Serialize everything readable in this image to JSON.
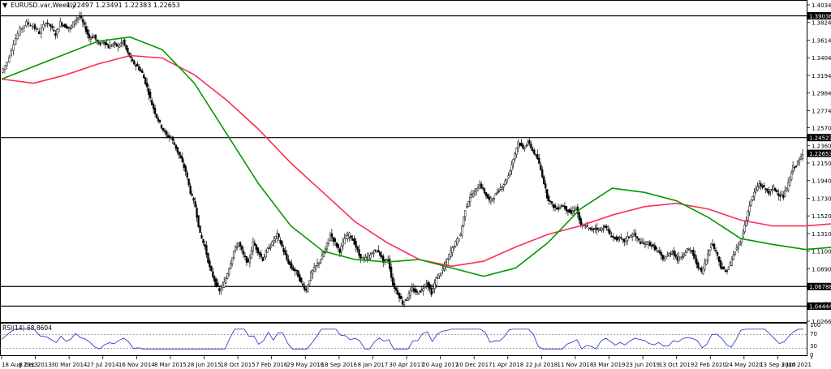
{
  "header": {
    "symbol_info": "EURUSD.var,Weekly",
    "ohlc": "1.22497 1.23491 1.22383 1.22653"
  },
  "price_axis": {
    "ticks": [
      "1.40340",
      "1.38240",
      "1.36140",
      "1.34040",
      "1.31940",
      "1.29840",
      "1.27740",
      "1.25700",
      "1.23600",
      "1.21500",
      "1.19400",
      "1.17300",
      "1.15200",
      "1.13100",
      "1.11000",
      "1.08900",
      "1.06860",
      "1.04760",
      "1.02660"
    ],
    "levels": [
      {
        "label": "1.39036",
        "value": 1.39036
      },
      {
        "label": "1.24527",
        "value": 1.24527
      },
      {
        "label": "1.06788",
        "value": 1.06788
      },
      {
        "label": "1.04444",
        "value": 1.04444
      }
    ],
    "current": {
      "label": "1.22653",
      "value": 1.22653
    }
  },
  "rsi": {
    "label": "RSI(14) 68.8604",
    "ticks": [
      "100",
      "70",
      "30",
      "0"
    ]
  },
  "time_axis": {
    "labels": [
      "18 Aug 2013",
      "8 Dec 2013",
      "30 Mar 2014",
      "27 Jul 2014",
      "16 Nov 2014",
      "8 Mar 2015",
      "28 Jun 2015",
      "18 Oct 2015",
      "7 Feb 2016",
      "29 May 2016",
      "18 Sep 2016",
      "8 Jan 2017",
      "30 Apr 2017",
      "20 Aug 2017",
      "10 Dec 2017",
      "1 Apr 2018",
      "22 Jul 2018",
      "11 Nov 2018",
      "3 Mar 2019",
      "23 Jun 2019",
      "13 Oct 2019",
      "2 Feb 2020",
      "24 May 2020",
      "13 Sep 2020",
      "3 Jan 2021"
    ]
  },
  "chart_data": {
    "type": "line",
    "ylim": [
      1.0266,
      1.4034
    ],
    "x_range": [
      "18 Aug 2013",
      "3 Jan 2021"
    ],
    "series": [
      {
        "role": "price",
        "color": "#000000",
        "points": [
          [
            0,
            1.323
          ],
          [
            4,
            1.335
          ],
          [
            8,
            1.358
          ],
          [
            12,
            1.374
          ],
          [
            16,
            1.382
          ],
          [
            20,
            1.378
          ],
          [
            24,
            1.37
          ],
          [
            28,
            1.383
          ],
          [
            31,
            1.378
          ],
          [
            34,
            1.368
          ],
          [
            37,
            1.382
          ],
          [
            40,
            1.378
          ],
          [
            43,
            1.375
          ],
          [
            46,
            1.385
          ],
          [
            49,
            1.39
          ],
          [
            52,
            1.378
          ],
          [
            55,
            1.364
          ],
          [
            58,
            1.366
          ],
          [
            61,
            1.356
          ],
          [
            64,
            1.36
          ],
          [
            67,
            1.353
          ],
          [
            70,
            1.357
          ],
          [
            73,
            1.354
          ],
          [
            76,
            1.36
          ],
          [
            79,
            1.346
          ],
          [
            82,
            1.335
          ],
          [
            85,
            1.33
          ],
          [
            88,
            1.322
          ],
          [
            91,
            1.305
          ],
          [
            94,
            1.285
          ],
          [
            97,
            1.27
          ],
          [
            100,
            1.258
          ],
          [
            103,
            1.248
          ],
          [
            106,
            1.245
          ],
          [
            109,
            1.233
          ],
          [
            112,
            1.22
          ],
          [
            115,
            1.205
          ],
          [
            118,
            1.18
          ],
          [
            121,
            1.163
          ],
          [
            124,
            1.13
          ],
          [
            127,
            1.115
          ],
          [
            130,
            1.09
          ],
          [
            133,
            1.075
          ],
          [
            136,
            1.062
          ],
          [
            139,
            1.072
          ],
          [
            142,
            1.09
          ],
          [
            145,
            1.11
          ],
          [
            148,
            1.12
          ],
          [
            151,
            1.105
          ],
          [
            154,
            1.095
          ],
          [
            157,
            1.12
          ],
          [
            160,
            1.11
          ],
          [
            163,
            1.1
          ],
          [
            166,
            1.112
          ],
          [
            169,
            1.12
          ],
          [
            172,
            1.13
          ],
          [
            175,
            1.115
          ],
          [
            178,
            1.1
          ],
          [
            181,
            1.09
          ],
          [
            184,
            1.085
          ],
          [
            187,
            1.072
          ],
          [
            190,
            1.063
          ],
          [
            193,
            1.083
          ],
          [
            196,
            1.092
          ],
          [
            199,
            1.1
          ],
          [
            202,
            1.112
          ],
          [
            205,
            1.13
          ],
          [
            208,
            1.12
          ],
          [
            211,
            1.11
          ],
          [
            214,
            1.125
          ],
          [
            217,
            1.13
          ],
          [
            220,
            1.12
          ],
          [
            223,
            1.105
          ],
          [
            226,
            1.1
          ],
          [
            229,
            1.103
          ],
          [
            232,
            1.11
          ],
          [
            235,
            1.11
          ],
          [
            238,
            1.098
          ],
          [
            241,
            1.1
          ],
          [
            244,
            1.07
          ],
          [
            247,
            1.06
          ],
          [
            250,
            1.048
          ],
          [
            253,
            1.055
          ],
          [
            256,
            1.065
          ],
          [
            259,
            1.06
          ],
          [
            262,
            1.064
          ],
          [
            265,
            1.073
          ],
          [
            268,
            1.06
          ],
          [
            271,
            1.077
          ],
          [
            274,
            1.085
          ],
          [
            277,
            1.095
          ],
          [
            280,
            1.11
          ],
          [
            283,
            1.12
          ],
          [
            286,
            1.13
          ],
          [
            289,
            1.16
          ],
          [
            292,
            1.175
          ],
          [
            295,
            1.18
          ],
          [
            298,
            1.19
          ],
          [
            301,
            1.18
          ],
          [
            304,
            1.17
          ],
          [
            307,
            1.175
          ],
          [
            310,
            1.183
          ],
          [
            313,
            1.19
          ],
          [
            316,
            1.2
          ],
          [
            319,
            1.22
          ],
          [
            322,
            1.24
          ],
          [
            325,
            1.232
          ],
          [
            328,
            1.24
          ],
          [
            331,
            1.23
          ],
          [
            334,
            1.22
          ],
          [
            337,
            1.2
          ],
          [
            340,
            1.175
          ],
          [
            343,
            1.165
          ],
          [
            346,
            1.16
          ],
          [
            349,
            1.165
          ],
          [
            352,
            1.16
          ],
          [
            355,
            1.155
          ],
          [
            358,
            1.162
          ],
          [
            361,
            1.14
          ],
          [
            364,
            1.14
          ],
          [
            367,
            1.135
          ],
          [
            370,
            1.138
          ],
          [
            373,
            1.135
          ],
          [
            376,
            1.14
          ],
          [
            379,
            1.13
          ],
          [
            382,
            1.125
          ],
          [
            385,
            1.125
          ],
          [
            388,
            1.122
          ],
          [
            391,
            1.128
          ],
          [
            394,
            1.13
          ],
          [
            397,
            1.122
          ],
          [
            400,
            1.118
          ],
          [
            403,
            1.12
          ],
          [
            406,
            1.115
          ],
          [
            409,
            1.11
          ],
          [
            412,
            1.1
          ],
          [
            415,
            1.105
          ],
          [
            418,
            1.11
          ],
          [
            421,
            1.1
          ],
          [
            424,
            1.105
          ],
          [
            427,
            1.112
          ],
          [
            430,
            1.11
          ],
          [
            433,
            1.095
          ],
          [
            436,
            1.085
          ],
          [
            439,
            1.1
          ],
          [
            442,
            1.12
          ],
          [
            445,
            1.11
          ],
          [
            448,
            1.092
          ],
          [
            451,
            1.085
          ],
          [
            454,
            1.095
          ],
          [
            457,
            1.11
          ],
          [
            460,
            1.12
          ],
          [
            463,
            1.14
          ],
          [
            466,
            1.165
          ],
          [
            469,
            1.18
          ],
          [
            472,
            1.19
          ],
          [
            475,
            1.185
          ],
          [
            478,
            1.18
          ],
          [
            481,
            1.185
          ],
          [
            484,
            1.178
          ],
          [
            487,
            1.175
          ],
          [
            490,
            1.19
          ],
          [
            493,
            1.21
          ],
          [
            496,
            1.215
          ],
          [
            499,
            1.225
          ]
        ]
      },
      {
        "role": "ma-slow",
        "color": "#ff2c55",
        "points": [
          [
            0,
            1.315
          ],
          [
            20,
            1.31
          ],
          [
            40,
            1.32
          ],
          [
            60,
            1.333
          ],
          [
            80,
            1.343
          ],
          [
            100,
            1.34
          ],
          [
            120,
            1.32
          ],
          [
            140,
            1.29
          ],
          [
            160,
            1.255
          ],
          [
            180,
            1.215
          ],
          [
            200,
            1.18
          ],
          [
            220,
            1.145
          ],
          [
            240,
            1.12
          ],
          [
            260,
            1.1
          ],
          [
            280,
            1.092
          ],
          [
            300,
            1.098
          ],
          [
            320,
            1.115
          ],
          [
            340,
            1.13
          ],
          [
            360,
            1.14
          ],
          [
            380,
            1.153
          ],
          [
            400,
            1.163
          ],
          [
            420,
            1.167
          ],
          [
            440,
            1.16
          ],
          [
            460,
            1.147
          ],
          [
            480,
            1.14
          ],
          [
            500,
            1.14
          ],
          [
            520,
            1.143
          ],
          [
            540,
            1.148
          ],
          [
            560,
            1.153
          ],
          [
            580,
            1.163
          ]
        ]
      },
      {
        "role": "ma-fast",
        "color": "#009900",
        "points": [
          [
            0,
            1.315
          ],
          [
            20,
            1.33
          ],
          [
            40,
            1.345
          ],
          [
            60,
            1.36
          ],
          [
            80,
            1.365
          ],
          [
            100,
            1.35
          ],
          [
            120,
            1.31
          ],
          [
            140,
            1.25
          ],
          [
            160,
            1.19
          ],
          [
            180,
            1.14
          ],
          [
            200,
            1.11
          ],
          [
            220,
            1.1
          ],
          [
            240,
            1.097
          ],
          [
            260,
            1.1
          ],
          [
            280,
            1.09
          ],
          [
            300,
            1.08
          ],
          [
            320,
            1.09
          ],
          [
            340,
            1.12
          ],
          [
            360,
            1.16
          ],
          [
            380,
            1.185
          ],
          [
            400,
            1.18
          ],
          [
            420,
            1.17
          ],
          [
            440,
            1.15
          ],
          [
            460,
            1.125
          ],
          [
            480,
            1.118
          ],
          [
            500,
            1.112
          ],
          [
            520,
            1.115
          ],
          [
            540,
            1.13
          ],
          [
            560,
            1.155
          ]
        ]
      }
    ]
  }
}
